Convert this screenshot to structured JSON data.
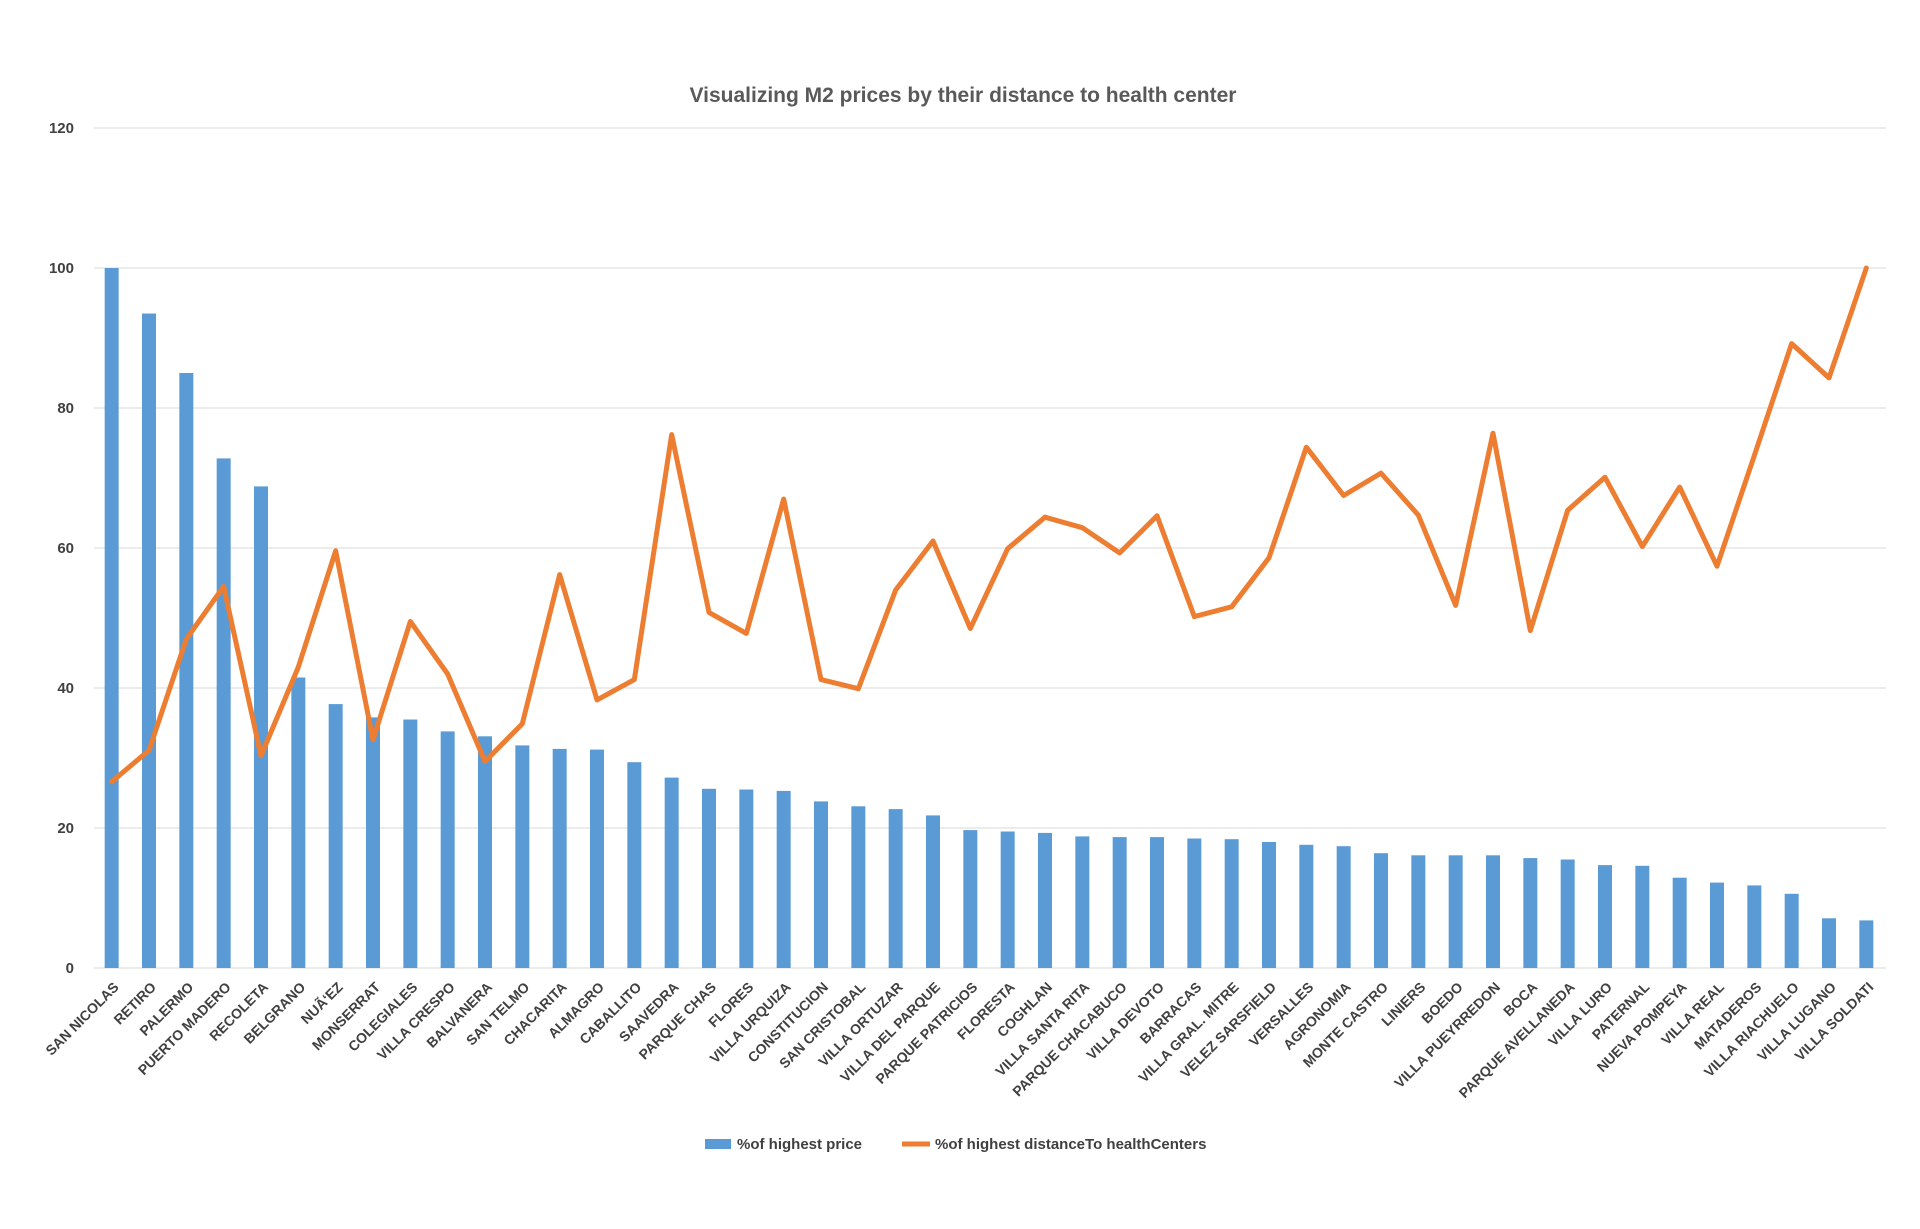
{
  "chart_data": {
    "type": "bar",
    "title": "Visualizing M2 prices by their distance to health center",
    "xlabel": "",
    "ylabel": "",
    "ylim": [
      0,
      120
    ],
    "yticks": [
      0,
      20,
      40,
      60,
      80,
      100,
      120
    ],
    "grid": true,
    "legend_position": "bottom",
    "colors": {
      "bars": "#5b9bd5",
      "line": "#ed7d31"
    },
    "categories": [
      "SAN NICOLAS",
      "RETIRO",
      "PALERMO",
      "PUERTO MADERO",
      "RECOLETA",
      "BELGRANO",
      "NUÃ‘EZ",
      "MONSERRAT",
      "COLEGIALES",
      "VILLA CRESPO",
      "BALVANERA",
      "SAN TELMO",
      "CHACARITA",
      "ALMAGRO",
      "CABALLITO",
      "SAAVEDRA",
      "PARQUE CHAS",
      "FLORES",
      "VILLA URQUIZA",
      "CONSTITUCION",
      "SAN CRISTOBAL",
      "VILLA ORTUZAR",
      "VILLA DEL PARQUE",
      "PARQUE PATRICIOS",
      "FLORESTA",
      "COGHLAN",
      "VILLA SANTA RITA",
      "PARQUE CHACABUCO",
      "VILLA DEVOTO",
      "BARRACAS",
      "VILLA GRAL. MITRE",
      "VELEZ SARSFIELD",
      "VERSALLES",
      "AGRONOMIA",
      "MONTE CASTRO",
      "LINIERS",
      "BOEDO",
      "VILLA PUEYRREDON",
      "BOCA",
      "PARQUE AVELLANEDA",
      "VILLA LURO",
      "PATERNAL",
      "NUEVA POMPEYA",
      "VILLA REAL",
      "MATADEROS",
      "VILLA RIACHUELO",
      "VILLA LUGANO",
      "VILLA SOLDATI"
    ],
    "series": [
      {
        "name": "%of highest price",
        "type": "bar",
        "values": [
          100,
          93.5,
          85,
          72.8,
          68.8,
          41.5,
          37.7,
          35.8,
          35.5,
          33.8,
          33.1,
          31.8,
          31.3,
          31.2,
          29.4,
          27.2,
          25.6,
          25.5,
          25.3,
          23.8,
          23.1,
          22.7,
          21.8,
          19.7,
          19.5,
          19.3,
          18.8,
          18.7,
          18.7,
          18.5,
          18.4,
          18.0,
          17.6,
          17.4,
          16.4,
          16.1,
          16.1,
          16.1,
          15.7,
          15.5,
          14.7,
          14.6,
          12.9,
          12.2,
          11.8,
          10.6,
          7.1,
          6.8
        ]
      },
      {
        "name": "%of highest distanceTo healthCenters",
        "type": "line",
        "values": [
          26.6,
          31.1,
          47.0,
          54.5,
          30.3,
          43.0,
          59.6,
          32.6,
          49.5,
          42.0,
          29.5,
          34.9,
          56.2,
          38.3,
          41.2,
          76.2,
          50.8,
          47.8,
          67.0,
          41.2,
          39.9,
          54.0,
          61.0,
          48.5,
          59.9,
          64.4,
          62.9,
          59.3,
          64.6,
          50.2,
          51.6,
          58.6,
          74.4,
          67.5,
          70.7,
          64.7,
          51.8,
          76.4,
          48.2,
          65.4,
          70.1,
          60.2,
          68.7,
          57.4,
          73.2,
          89.2,
          84.3,
          100
        ]
      }
    ]
  }
}
